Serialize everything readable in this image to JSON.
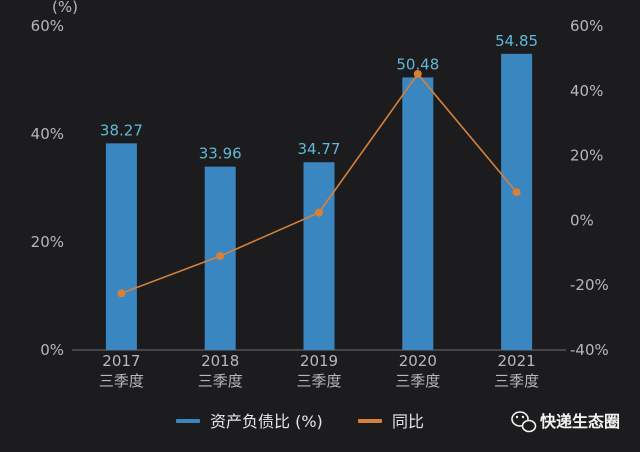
{
  "chart_data": {
    "type": "bar",
    "categories": [
      [
        "2017",
        "三季度"
      ],
      [
        "2018",
        "三季度"
      ],
      [
        "2019",
        "三季度"
      ],
      [
        "2020",
        "三季度"
      ],
      [
        "2021",
        "三季度"
      ]
    ],
    "series": [
      {
        "name": "资产负债比 (%)",
        "type": "bar",
        "axis": "left",
        "values": [
          38.27,
          33.96,
          34.77,
          50.48,
          54.85
        ],
        "color": "#3a86c1"
      },
      {
        "name": "同比",
        "type": "line",
        "axis": "right",
        "values": [
          -22.5,
          -11.0,
          2.4,
          45.2,
          8.7
        ],
        "color": "#d7803a"
      }
    ],
    "data_labels": [
      "38.27",
      "33.96",
      "34.77",
      "50.48",
      "54.85"
    ],
    "ylabel_unit": "(%)",
    "y_left": {
      "lim": [
        0,
        60
      ],
      "ticks": [
        "0%",
        "20%",
        "40%",
        "60%"
      ]
    },
    "y_right": {
      "lim": [
        -40,
        60
      ],
      "ticks": [
        "-40%",
        "-20%",
        "0%",
        "20%",
        "40%",
        "60%"
      ]
    },
    "grid": false,
    "legend_position": "bottom"
  },
  "brand": {
    "text": "快递生态圈",
    "icon": "wechat-icon"
  },
  "colors": {
    "background": "#1c1c1e",
    "bar": "#3a86c1",
    "line": "#d7803a",
    "label": "#5fb8d6",
    "axis_text": "#b8b8bc"
  }
}
